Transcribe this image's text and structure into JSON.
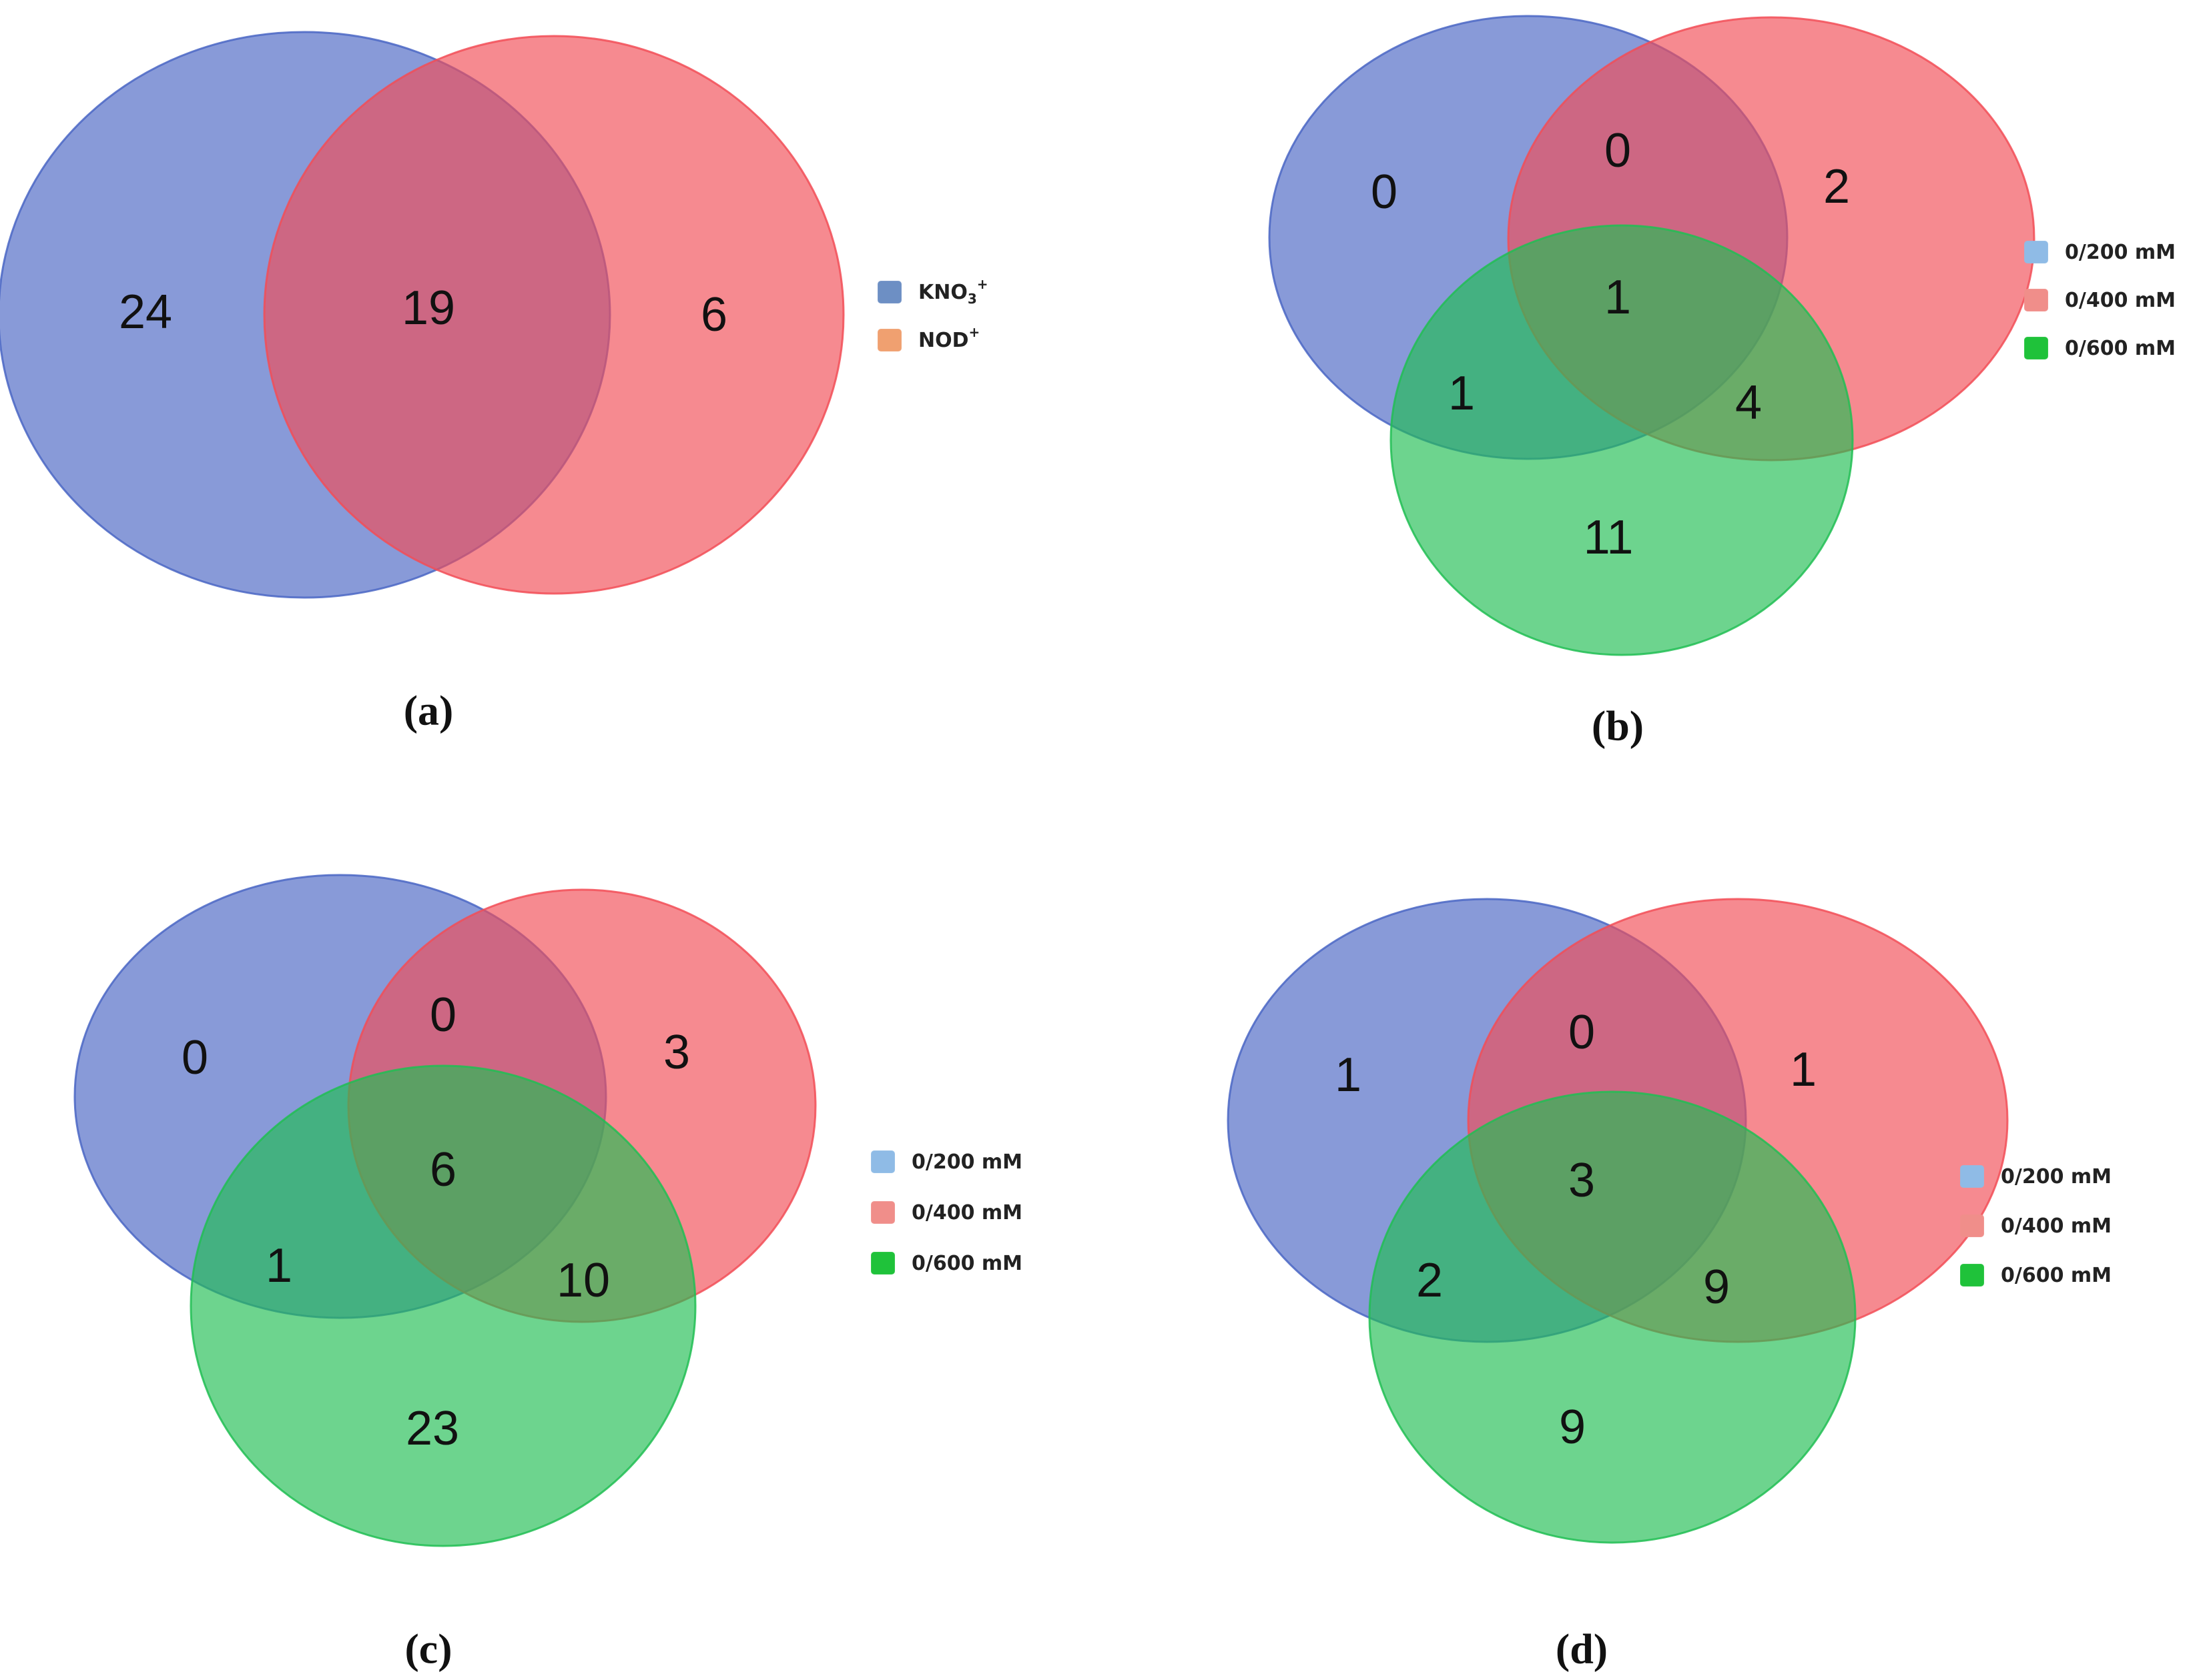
{
  "colors": {
    "set1": "#4a66c4",
    "set2": "#f24d57",
    "set3": "#21be53",
    "legend1": "#8fbbe6",
    "legend2": "#f08e8a",
    "legend3": "#1fc23a",
    "legendA1": "#6d8fc4",
    "legendA2": "#f0a070"
  },
  "panels": [
    {
      "caption": "(a)",
      "legend": [
        {
          "label": "KNO",
          "sub": "3",
          "sup": "+",
          "swatch": "legendA1"
        },
        {
          "label": "NOD",
          "sub": "",
          "sup": "+",
          "swatch": "legendA2"
        }
      ],
      "counts": {
        "only1": "24",
        "both12": "19",
        "only2": "6"
      }
    },
    {
      "caption": "(b)",
      "legend": [
        {
          "label": "0/200 mM",
          "swatch": "legend1"
        },
        {
          "label": "0/400 mM",
          "swatch": "legend2"
        },
        {
          "label": "0/600 mM",
          "swatch": "legend3"
        }
      ],
      "counts": {
        "only1": "0",
        "both12": "0",
        "only2": "2",
        "all": "1",
        "both13": "1",
        "both23": "4",
        "only3": "11"
      }
    },
    {
      "caption": "(c)",
      "legend": [
        {
          "label": "0/200 mM",
          "swatch": "legend1"
        },
        {
          "label": "0/400 mM",
          "swatch": "legend2"
        },
        {
          "label": "0/600 mM",
          "swatch": "legend3"
        }
      ],
      "counts": {
        "only1": "0",
        "both12": "0",
        "only2": "3",
        "all": "6",
        "both13": "1",
        "both23": "10",
        "only3": "23"
      }
    },
    {
      "caption": "(d)",
      "legend": [
        {
          "label": "0/200 mM",
          "swatch": "legend1"
        },
        {
          "label": "0/400 mM",
          "swatch": "legend2"
        },
        {
          "label": "0/600 mM",
          "swatch": "legend3"
        }
      ],
      "counts": {
        "only1": "1",
        "both12": "0",
        "only2": "1",
        "all": "3",
        "both13": "2",
        "both23": "9",
        "only3": "9"
      }
    }
  ]
}
